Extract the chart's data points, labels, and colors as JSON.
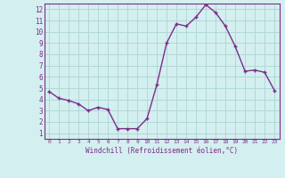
{
  "x": [
    0,
    1,
    2,
    3,
    4,
    5,
    6,
    7,
    8,
    9,
    10,
    11,
    12,
    13,
    14,
    15,
    16,
    17,
    18,
    19,
    20,
    21,
    22,
    23
  ],
  "y": [
    4.7,
    4.1,
    3.9,
    3.6,
    3.0,
    3.3,
    3.1,
    1.4,
    1.4,
    1.4,
    2.3,
    5.3,
    9.0,
    10.7,
    10.5,
    11.3,
    12.4,
    11.7,
    10.5,
    8.7,
    6.5,
    6.6,
    6.4,
    4.8
  ],
  "xlabel": "Windchill (Refroidissement éolien,°C)",
  "xlim": [
    -0.5,
    23.5
  ],
  "ylim": [
    0.5,
    12.5
  ],
  "xticks": [
    0,
    1,
    2,
    3,
    4,
    5,
    6,
    7,
    8,
    9,
    10,
    11,
    12,
    13,
    14,
    15,
    16,
    17,
    18,
    19,
    20,
    21,
    22,
    23
  ],
  "yticks": [
    1,
    2,
    3,
    4,
    5,
    6,
    7,
    8,
    9,
    10,
    11,
    12
  ],
  "line_color": "#7b2d8b",
  "bg_color": "#d4efef",
  "grid_color": "#b0d8d8",
  "tick_color": "#7b2d8b",
  "label_color": "#7b2d8b"
}
